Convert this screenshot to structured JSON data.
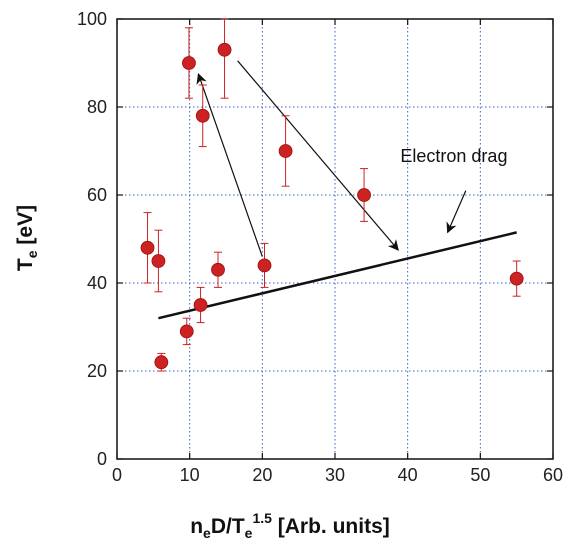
{
  "chart_data": {
    "type": "scatter",
    "xlim": [
      0,
      60
    ],
    "ylim": [
      0,
      100
    ],
    "x_ticks": [
      0,
      10,
      20,
      30,
      40,
      50,
      60
    ],
    "y_ticks": [
      0,
      20,
      40,
      60,
      80,
      100
    ],
    "x_tick_labels": [
      "0",
      "10",
      "20",
      "30",
      "40",
      "50",
      "60"
    ],
    "y_tick_labels": [
      "0",
      "20",
      "40",
      "60",
      "80",
      "100"
    ],
    "grid": true,
    "grid_color": "#3a5fcd",
    "point_color": "#cc2222",
    "errorbar_color": "#cc2222",
    "xlabel": {
      "main": "n",
      "sub1": "e",
      "mid": "D/T",
      "sub2": "e",
      "sup": "1.5",
      "tail": " [Arb. units]"
    },
    "ylabel": {
      "main": "T",
      "sub": "e",
      "tail": " [eV]"
    },
    "points": [
      {
        "x": 4.2,
        "y": 48,
        "yerr": 8
      },
      {
        "x": 5.7,
        "y": 45,
        "yerr": 7
      },
      {
        "x": 6.1,
        "y": 22,
        "yerr": 2
      },
      {
        "x": 9.6,
        "y": 29,
        "yerr": 3
      },
      {
        "x": 9.9,
        "y": 90,
        "yerr": 8
      },
      {
        "x": 11.5,
        "y": 35,
        "yerr": 4
      },
      {
        "x": 11.8,
        "y": 78,
        "yerr": 7
      },
      {
        "x": 13.9,
        "y": 43,
        "yerr": 4
      },
      {
        "x": 14.8,
        "y": 93,
        "yerr": 11
      },
      {
        "x": 20.3,
        "y": 44,
        "yerr": 5
      },
      {
        "x": 23.2,
        "y": 70,
        "yerr": 8
      },
      {
        "x": 34.0,
        "y": 60,
        "yerr": 6
      },
      {
        "x": 55.0,
        "y": 41,
        "yerr": 4
      }
    ],
    "trend_line": {
      "x": [
        5.7,
        55.0
      ],
      "y": [
        32,
        51.5
      ]
    },
    "arrows": [
      {
        "from": [
          16.6,
          90.5
        ],
        "to": [
          38.7,
          47.5
        ]
      },
      {
        "from": [
          20.0,
          46.0
        ],
        "to": [
          11.2,
          87.5
        ]
      }
    ],
    "annotation": {
      "text": "Electron drag",
      "anchor": [
        39.0,
        67.5
      ],
      "arrow_from": [
        48.0,
        61.0
      ],
      "arrow_to": [
        45.5,
        51.5
      ]
    }
  }
}
